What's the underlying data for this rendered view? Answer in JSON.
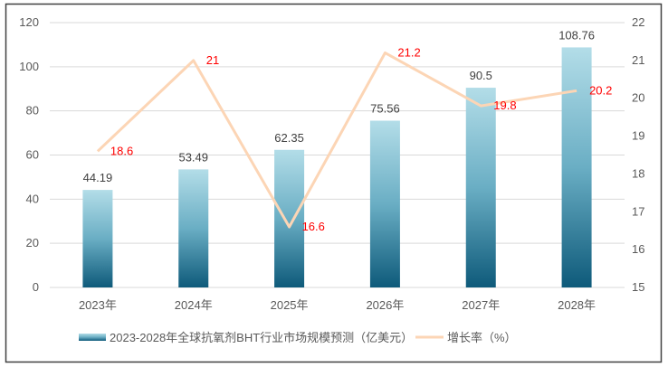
{
  "chart_data": {
    "type": "bar+line",
    "title": "",
    "categories": [
      "2023年",
      "2024年",
      "2025年",
      "2026年",
      "2027年",
      "2028年"
    ],
    "series": [
      {
        "name": "2023-2028年全球抗氧剂BHT行业市场规模预测（亿美元）",
        "type": "bar",
        "axis": "left",
        "values": [
          44.19,
          53.49,
          62.35,
          75.56,
          90.5,
          108.76
        ],
        "labels": [
          "44.19",
          "53.49",
          "62.35",
          "75.56",
          "90.5",
          "108.76"
        ]
      },
      {
        "name": "增长率（%）",
        "type": "line",
        "axis": "right",
        "values": [
          18.6,
          21,
          16.6,
          21.2,
          19.8,
          20.2
        ],
        "labels": [
          "18.6",
          "21",
          "16.6",
          "21.2",
          "19.8",
          "20.2"
        ]
      }
    ],
    "y_left": {
      "ylim": [
        0,
        120
      ],
      "ticks": [
        "0",
        "20",
        "40",
        "60",
        "80",
        "100",
        "120"
      ]
    },
    "y_right": {
      "ylim": [
        15,
        22
      ],
      "ticks": [
        "15",
        "16",
        "17",
        "18",
        "19",
        "20",
        "21",
        "22"
      ]
    },
    "grid": true,
    "legend": "bottom",
    "colors": {
      "bar_top": "#b3dde8",
      "bar_bottom": "#0e5a7a",
      "line": "#fcd5b5",
      "line_label": "#ff0000",
      "grid": "#d9d9d9"
    }
  }
}
